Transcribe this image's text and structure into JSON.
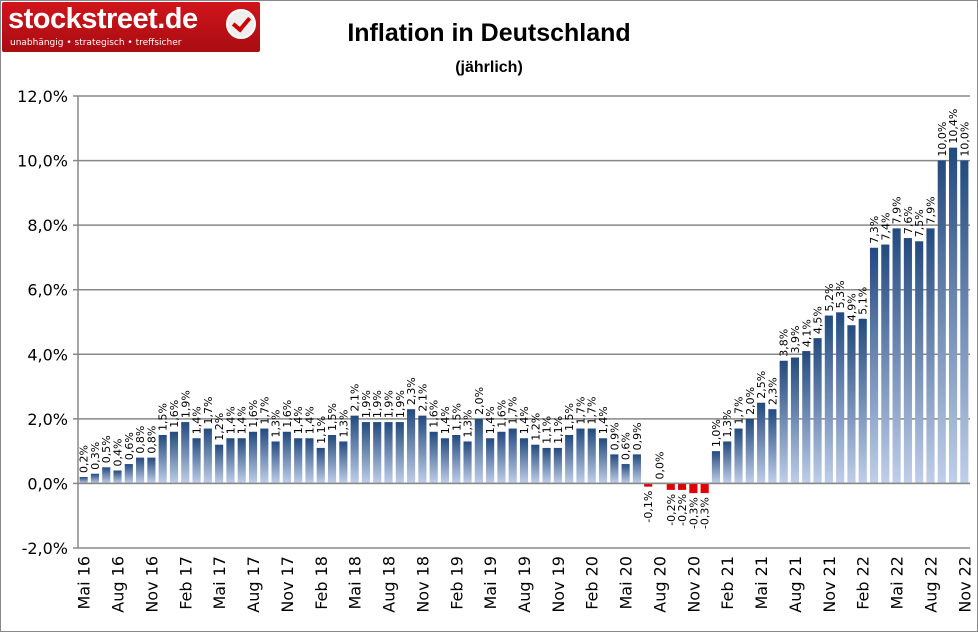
{
  "logo": {
    "name": "stockstreet.de",
    "tagline": "unabhängig • strategisch • treffsicher"
  },
  "chart_data": {
    "type": "bar",
    "title": "Inflation in Deutschland",
    "subtitle": "(jährlich)",
    "xlabel": "",
    "ylabel": "",
    "ylim": [
      -2,
      12
    ],
    "yticks": [
      "-2,0%",
      "0,0%",
      "2,0%",
      "4,0%",
      "6,0%",
      "8,0%",
      "10,0%",
      "12,0%"
    ],
    "grid": true,
    "colors": {
      "positive": "#234a7e",
      "positive_light": "#c0cfea",
      "negative": "#e00000"
    },
    "x_tick_labels": [
      "Mai 16",
      "Aug 16",
      "Nov 16",
      "Feb 17",
      "Mai 17",
      "Aug 17",
      "Nov 17",
      "Feb 18",
      "Mai 18",
      "Aug 18",
      "Nov 18",
      "Feb 19",
      "Mai 19",
      "Aug 19",
      "Nov 19",
      "Feb 20",
      "Mai 20",
      "Aug 20",
      "Nov 20",
      "Feb 21",
      "Mai 21",
      "Aug 21",
      "Nov 21",
      "Feb 22",
      "Mai 22",
      "Aug 22",
      "Nov 22"
    ],
    "values": [
      0.2,
      0.3,
      0.5,
      0.4,
      0.6,
      0.8,
      0.8,
      1.5,
      1.6,
      1.9,
      1.4,
      1.7,
      1.2,
      1.4,
      1.4,
      1.6,
      1.7,
      1.3,
      1.6,
      1.4,
      1.4,
      1.1,
      1.5,
      1.3,
      2.1,
      1.9,
      1.9,
      1.9,
      1.9,
      2.3,
      2.1,
      1.6,
      1.4,
      1.5,
      1.3,
      2.0,
      1.4,
      1.6,
      1.7,
      1.4,
      1.2,
      1.1,
      1.1,
      1.5,
      1.7,
      1.7,
      1.4,
      0.9,
      0.6,
      0.9,
      -0.1,
      0.0,
      -0.2,
      -0.2,
      -0.3,
      -0.3,
      1.0,
      1.3,
      1.7,
      2.0,
      2.5,
      2.3,
      3.8,
      3.9,
      4.1,
      4.5,
      5.2,
      5.3,
      4.9,
      5.1,
      7.3,
      7.4,
      7.9,
      7.6,
      7.5,
      7.9,
      10.0,
      10.4,
      10.0
    ],
    "data_labels": [
      "0,2%",
      "0,3%",
      "0,5%",
      "0,4%",
      "0,6%",
      "0,8%",
      "0,8%",
      "1,5%",
      "1,6%",
      "1,9%",
      "1,4%",
      "1,7%",
      "1,2%",
      "1,4%",
      "1,4%",
      "1,6%",
      "1,7%",
      "1,3%",
      "1,6%",
      "1,4%",
      "1,4%",
      "1,1%",
      "1,5%",
      "1,3%",
      "2,1%",
      "1,9%",
      "1,9%",
      "1,9%",
      "1,9%",
      "2,3%",
      "2,1%",
      "1,6%",
      "1,4%",
      "1,5%",
      "1,3%",
      "2,0%",
      "1,4%",
      "1,6%",
      "1,7%",
      "1,4%",
      "1,2%",
      "1,1%",
      "1,1%",
      "1,5%",
      "1,7%",
      "1,7%",
      "1,4%",
      "0,9%",
      "0,6%",
      "0,9%",
      "-0,1%",
      "0,0%",
      "-0,2%",
      "-0,2%",
      "-0,3%",
      "-0,3%",
      "1,0%",
      "1,3%",
      "1,7%",
      "2,0%",
      "2,5%",
      "2,3%",
      "3,8%",
      "3,9%",
      "4,1%",
      "4,5%",
      "5,2%",
      "5,3%",
      "4,9%",
      "5,1%",
      "7,3%",
      "7,4%",
      "7,9%",
      "7,6%",
      "7,5%",
      "7,9%",
      "10,0%",
      "10,4%",
      "10,0%"
    ]
  }
}
